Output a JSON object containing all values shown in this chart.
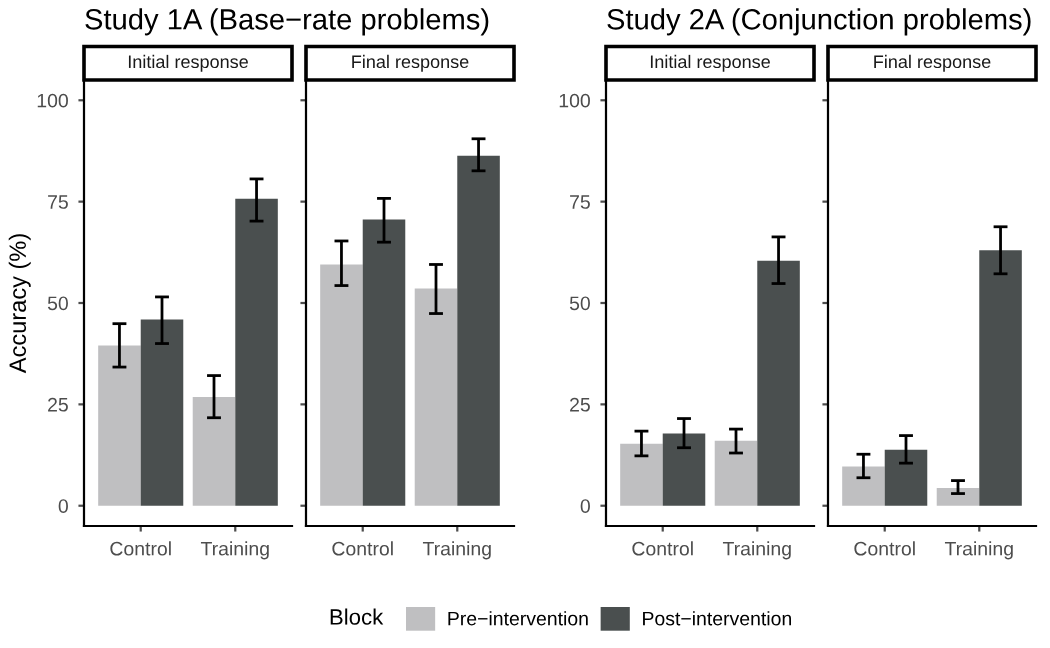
{
  "chart_data": [
    {
      "type": "bar",
      "title": "Study 1A (Base−rate problems)",
      "subtitle": "Initial response",
      "ylabel": "Accuracy (%)",
      "categories": [
        "Control",
        "Training"
      ],
      "ylim": [
        -5,
        105
      ],
      "yticks": [
        0,
        25,
        50,
        75,
        100
      ],
      "grid": false,
      "legend": "bottom",
      "legend_title": "Block",
      "series": [
        {
          "name": "Pre−intervention",
          "color": "#bfbfc1",
          "values": [
            39.5,
            26.8
          ],
          "errors": [
            [
              34.2,
              44.9
            ],
            [
              21.7,
              32.1
            ]
          ]
        },
        {
          "name": "Post−intervention",
          "color": "#4a4f4f",
          "values": [
            45.9,
            75.7
          ],
          "errors": [
            [
              40,
              51.5
            ],
            [
              70.2,
              80.6
            ]
          ]
        }
      ]
    },
    {
      "type": "bar",
      "subtitle": "Final response",
      "categories": [
        "Control",
        "Training"
      ],
      "ylim": [
        -5,
        105
      ],
      "yticks": [
        0,
        25,
        50,
        75,
        100
      ],
      "grid": false,
      "tick_labels": "x",
      "series": [
        {
          "color": "#bfbfc1",
          "values": [
            59.5,
            53.6
          ],
          "errors": [
            [
              54.3,
              65.3
            ],
            [
              47.4,
              59.5
            ]
          ]
        },
        {
          "color": "#4a4f4f",
          "values": [
            70.6,
            86.3
          ],
          "errors": [
            [
              65,
              75.8
            ],
            [
              82.6,
              90.5
            ]
          ]
        }
      ]
    },
    {
      "type": "bar",
      "title": "Study 2A (Conjunction problems)",
      "subtitle": "Initial response",
      "categories": [
        "Control",
        "Training"
      ],
      "ylim": [
        -5,
        105
      ],
      "yticks": [
        0,
        25,
        50,
        75,
        100
      ],
      "grid": false,
      "series": [
        {
          "color": "#bfbfc1",
          "values": [
            15.3,
            16
          ],
          "errors": [
            [
              12.3,
              18.4
            ],
            [
              13,
              18.9
            ]
          ]
        },
        {
          "color": "#4a4f4f",
          "values": [
            17.8,
            60.4
          ],
          "errors": [
            [
              14.3,
              21.5
            ],
            [
              54.8,
              66.3
            ]
          ]
        }
      ]
    },
    {
      "type": "bar",
      "subtitle": "Final response",
      "categories": [
        "Control",
        "Training"
      ],
      "ylim": [
        -5,
        105
      ],
      "yticks": [
        0,
        25,
        50,
        75,
        100
      ],
      "grid": false,
      "tick_labels": "x",
      "series": [
        {
          "color": "#bfbfc1",
          "values": [
            9.7,
            4.4
          ],
          "errors": [
            [
              6.9,
              12.7
            ],
            [
              3,
              6.2
            ]
          ]
        },
        {
          "color": "#4a4f4f",
          "values": [
            13.8,
            63
          ],
          "errors": [
            [
              10.5,
              17.3
            ],
            [
              57.2,
              68.8
            ]
          ]
        }
      ]
    }
  ]
}
